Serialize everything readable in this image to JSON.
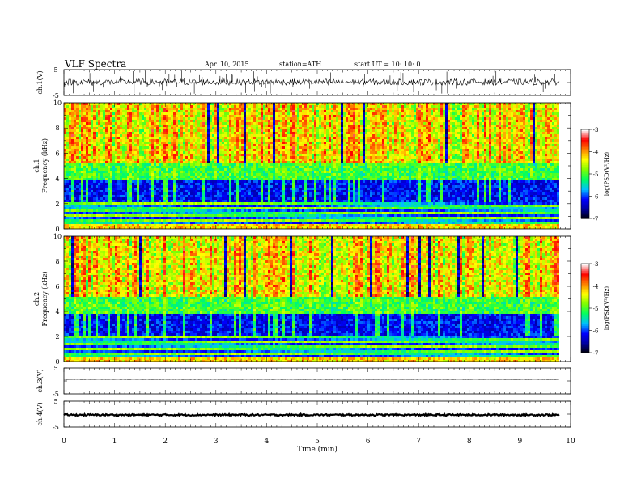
{
  "header": {
    "title": "VLF  Spectra",
    "date": "Apr. 10, 2015",
    "station": "station=ATH",
    "start": "start  UT  =   10: 10: 0"
  },
  "chart_data": [
    {
      "type": "line",
      "panel": "ch1-waveform",
      "ylabel": "ch.1(V)",
      "ylim": [
        -5,
        5
      ],
      "y_ticks": [
        "5",
        "-5"
      ],
      "xlim": [
        0,
        10
      ],
      "series_description": "dense waveform centered near 0 V",
      "baseline_v": 0.2,
      "amplitude_v": 1.2
    },
    {
      "type": "heatmap",
      "panel": "ch1-spectrogram",
      "ylabel": "ch.1\nFrequency  (kHz)",
      "ylabel_line1": "ch.1",
      "ylabel_line2": "Frequency  (kHz)",
      "ylim": [
        0,
        10
      ],
      "y_ticks": [
        "0",
        "2",
        "4",
        "6",
        "8",
        "10"
      ],
      "xlim": [
        0,
        9.8
      ],
      "colorbar": {
        "label": "log(PSD(V²/Hz)",
        "range": [
          -7,
          -3
        ],
        "ticks": [
          "-3",
          "-4",
          "-5",
          "-6",
          "-7"
        ]
      }
    },
    {
      "type": "heatmap",
      "panel": "ch2-spectrogram",
      "ylabel": "ch.2\nFrequency  (kHz)",
      "ylabel_line1": "ch.2",
      "ylabel_line2": "Frequency  (kHz)",
      "ylim": [
        0,
        10
      ],
      "y_ticks": [
        "0",
        "2",
        "4",
        "6",
        "8",
        "10"
      ],
      "xlim": [
        0,
        9.8
      ],
      "colorbar": {
        "label": "log(PSD(V²/Hz)",
        "range": [
          -7,
          -3
        ],
        "ticks": [
          "-3",
          "-4",
          "-5",
          "-6",
          "-7"
        ]
      }
    },
    {
      "type": "line",
      "panel": "ch3-waveform",
      "ylabel": "ch.3(V)",
      "ylim": [
        -5,
        5
      ],
      "y_ticks": [
        "5",
        "-5"
      ],
      "xlim": [
        0,
        10
      ],
      "baseline_v": 0.6,
      "amplitude_v": 0.05
    },
    {
      "type": "line",
      "panel": "ch4-waveform",
      "ylabel": "ch.4(V)",
      "ylim": [
        -5,
        5
      ],
      "y_ticks": [
        "5",
        "-5"
      ],
      "xlim": [
        0,
        10
      ],
      "baseline_v": -0.3,
      "amplitude_v": 0.3,
      "x_ticks": [
        "0",
        "1",
        "2",
        "3",
        "4",
        "5",
        "6",
        "7",
        "8",
        "9",
        "10"
      ],
      "xlabel": "Time  (min)"
    }
  ],
  "colors": {
    "colormap": [
      "#000000",
      "#0000a0",
      "#0000ff",
      "#00c0ff",
      "#00ff60",
      "#80ff00",
      "#ffff00",
      "#ff8000",
      "#ff0000",
      "#ffffff"
    ]
  }
}
